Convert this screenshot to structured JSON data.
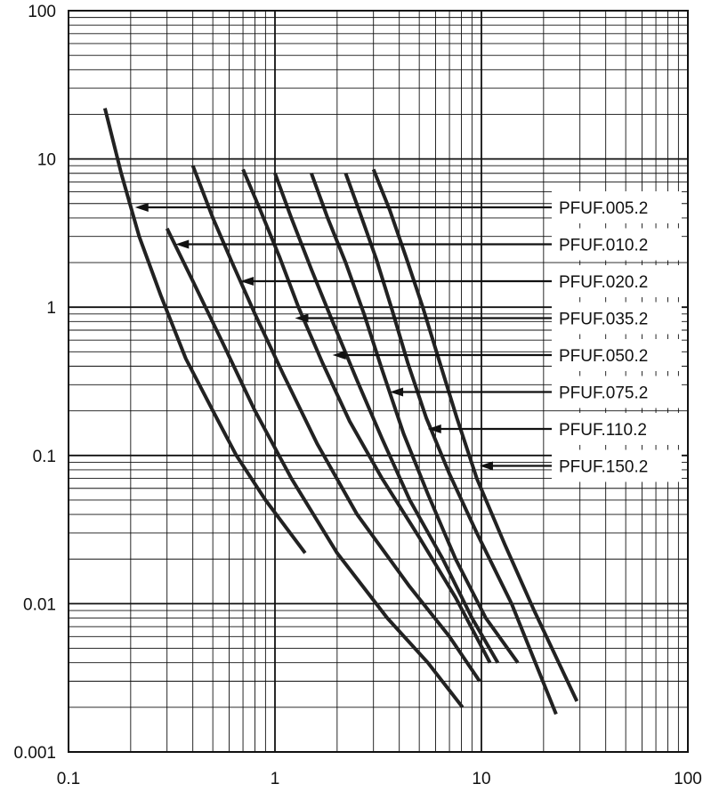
{
  "chart_data": {
    "type": "line",
    "xscale": "log",
    "yscale": "log",
    "xlim": [
      0.1,
      100
    ],
    "ylim": [
      0.001,
      100
    ],
    "grid": true,
    "xticks": [
      "0.1",
      "1",
      "10",
      "100"
    ],
    "yticks": [
      "0.001",
      "0.01",
      "0.1",
      "1",
      "10",
      "100"
    ],
    "colors": {
      "line": "#222222",
      "grid": "#111111",
      "label_bg": "#ffffff"
    },
    "series": [
      {
        "name": "PFUF.005.2",
        "label_arrow_to": [
          0.21,
          4.6
        ],
        "points": [
          [
            0.15,
            22
          ],
          [
            0.18,
            8
          ],
          [
            0.22,
            3
          ],
          [
            0.28,
            1.2
          ],
          [
            0.37,
            0.45
          ],
          [
            0.5,
            0.2
          ],
          [
            0.65,
            0.1
          ],
          [
            0.9,
            0.05
          ],
          [
            1.4,
            0.022
          ]
        ]
      },
      {
        "name": "PFUF.010.2",
        "label_arrow_to": [
          0.33,
          2.6
        ],
        "points": [
          [
            0.3,
            3.4
          ],
          [
            0.4,
            1.5
          ],
          [
            0.55,
            0.6
          ],
          [
            0.8,
            0.2
          ],
          [
            1.2,
            0.07
          ],
          [
            2.0,
            0.022
          ],
          [
            3.5,
            0.008
          ],
          [
            5.5,
            0.004
          ],
          [
            8.1,
            0.002
          ]
        ]
      },
      {
        "name": "PFUF.020.2",
        "label_arrow_to": [
          0.68,
          1.5
        ],
        "points": [
          [
            0.4,
            9
          ],
          [
            0.5,
            4
          ],
          [
            0.62,
            2
          ],
          [
            0.8,
            0.9
          ],
          [
            1.1,
            0.35
          ],
          [
            1.6,
            0.12
          ],
          [
            2.5,
            0.04
          ],
          [
            4.5,
            0.013
          ],
          [
            7,
            0.006
          ],
          [
            9.8,
            0.003
          ]
        ]
      },
      {
        "name": "PFUF.035.2",
        "label_arrow_to": [
          1.25,
          0.87
        ],
        "points": [
          [
            0.7,
            8.5
          ],
          [
            0.85,
            4.5
          ],
          [
            1.05,
            2.2
          ],
          [
            1.3,
            1.0
          ],
          [
            1.7,
            0.42
          ],
          [
            2.3,
            0.17
          ],
          [
            3.3,
            0.07
          ],
          [
            5,
            0.028
          ],
          [
            7.5,
            0.011
          ],
          [
            11,
            0.004
          ]
        ]
      },
      {
        "name": "PFUF.050.2",
        "label_arrow_to": [
          1.9,
          0.5
        ],
        "points": [
          [
            1.0,
            8
          ],
          [
            1.2,
            4
          ],
          [
            1.5,
            1.8
          ],
          [
            1.9,
            0.8
          ],
          [
            2.5,
            0.32
          ],
          [
            3.3,
            0.13
          ],
          [
            4.5,
            0.05
          ],
          [
            6.5,
            0.02
          ],
          [
            9,
            0.008
          ],
          [
            12,
            0.004
          ]
        ]
      },
      {
        "name": "PFUF.075.2",
        "label_arrow_to": [
          3.6,
          0.28
        ],
        "points": [
          [
            1.5,
            8
          ],
          [
            1.8,
            4
          ],
          [
            2.2,
            2
          ],
          [
            2.7,
            0.9
          ],
          [
            3.3,
            0.38
          ],
          [
            4.2,
            0.14
          ],
          [
            5.5,
            0.055
          ],
          [
            7.5,
            0.02
          ],
          [
            10.5,
            0.008
          ],
          [
            15,
            0.004
          ]
        ]
      },
      {
        "name": "PFUF.110.2",
        "label_arrow_to": [
          5.5,
          0.16
        ],
        "points": [
          [
            2.2,
            8
          ],
          [
            2.6,
            4.2
          ],
          [
            3.1,
            2.1
          ],
          [
            3.7,
            0.95
          ],
          [
            4.4,
            0.42
          ],
          [
            5.4,
            0.18
          ],
          [
            7,
            0.075
          ],
          [
            9.5,
            0.03
          ],
          [
            14,
            0.01
          ],
          [
            23,
            0.0018
          ]
        ]
      },
      {
        "name": "PFUF.150.2",
        "label_arrow_to": [
          9.8,
          0.09
        ],
        "points": [
          [
            3,
            8.5
          ],
          [
            3.6,
            4.5
          ],
          [
            4.3,
            2.2
          ],
          [
            5.2,
            1.0
          ],
          [
            6.3,
            0.42
          ],
          [
            7.6,
            0.18
          ],
          [
            9.5,
            0.07
          ],
          [
            13,
            0.025
          ],
          [
            18,
            0.009
          ],
          [
            29,
            0.0022
          ]
        ]
      }
    ]
  }
}
